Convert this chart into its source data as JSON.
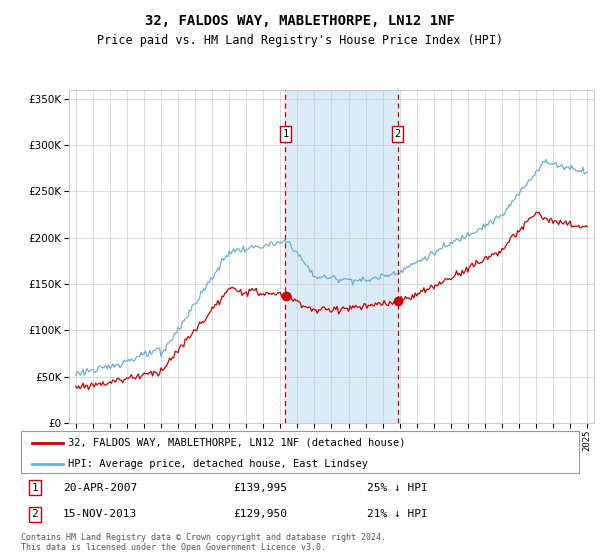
{
  "title": "32, FALDOS WAY, MABLETHORPE, LN12 1NF",
  "subtitle": "Price paid vs. HM Land Registry's House Price Index (HPI)",
  "legend_line1": "32, FALDOS WAY, MABLETHORPE, LN12 1NF (detached house)",
  "legend_line2": "HPI: Average price, detached house, East Lindsey",
  "annotation1": {
    "label": "1",
    "date": "20-APR-2007",
    "price": "£139,995",
    "pct": "25% ↓ HPI",
    "year": 2007.3
  },
  "annotation2": {
    "label": "2",
    "date": "15-NOV-2013",
    "price": "£129,950",
    "pct": "21% ↓ HPI",
    "year": 2013.88
  },
  "footnote1": "Contains HM Land Registry data © Crown copyright and database right 2024.",
  "footnote2": "This data is licensed under the Open Government Licence v3.0.",
  "hpi_color": "#6baed6",
  "price_color": "#cc0000",
  "annotation_color": "#cc0000",
  "shading_color": "#daeaf7",
  "background_color": "#ffffff",
  "grid_color": "#cccccc",
  "ylim": [
    0,
    360000
  ],
  "yticks": [
    0,
    50000,
    100000,
    150000,
    200000,
    250000,
    300000,
    350000
  ],
  "xlim_start": 1994.6,
  "xlim_end": 2025.4
}
